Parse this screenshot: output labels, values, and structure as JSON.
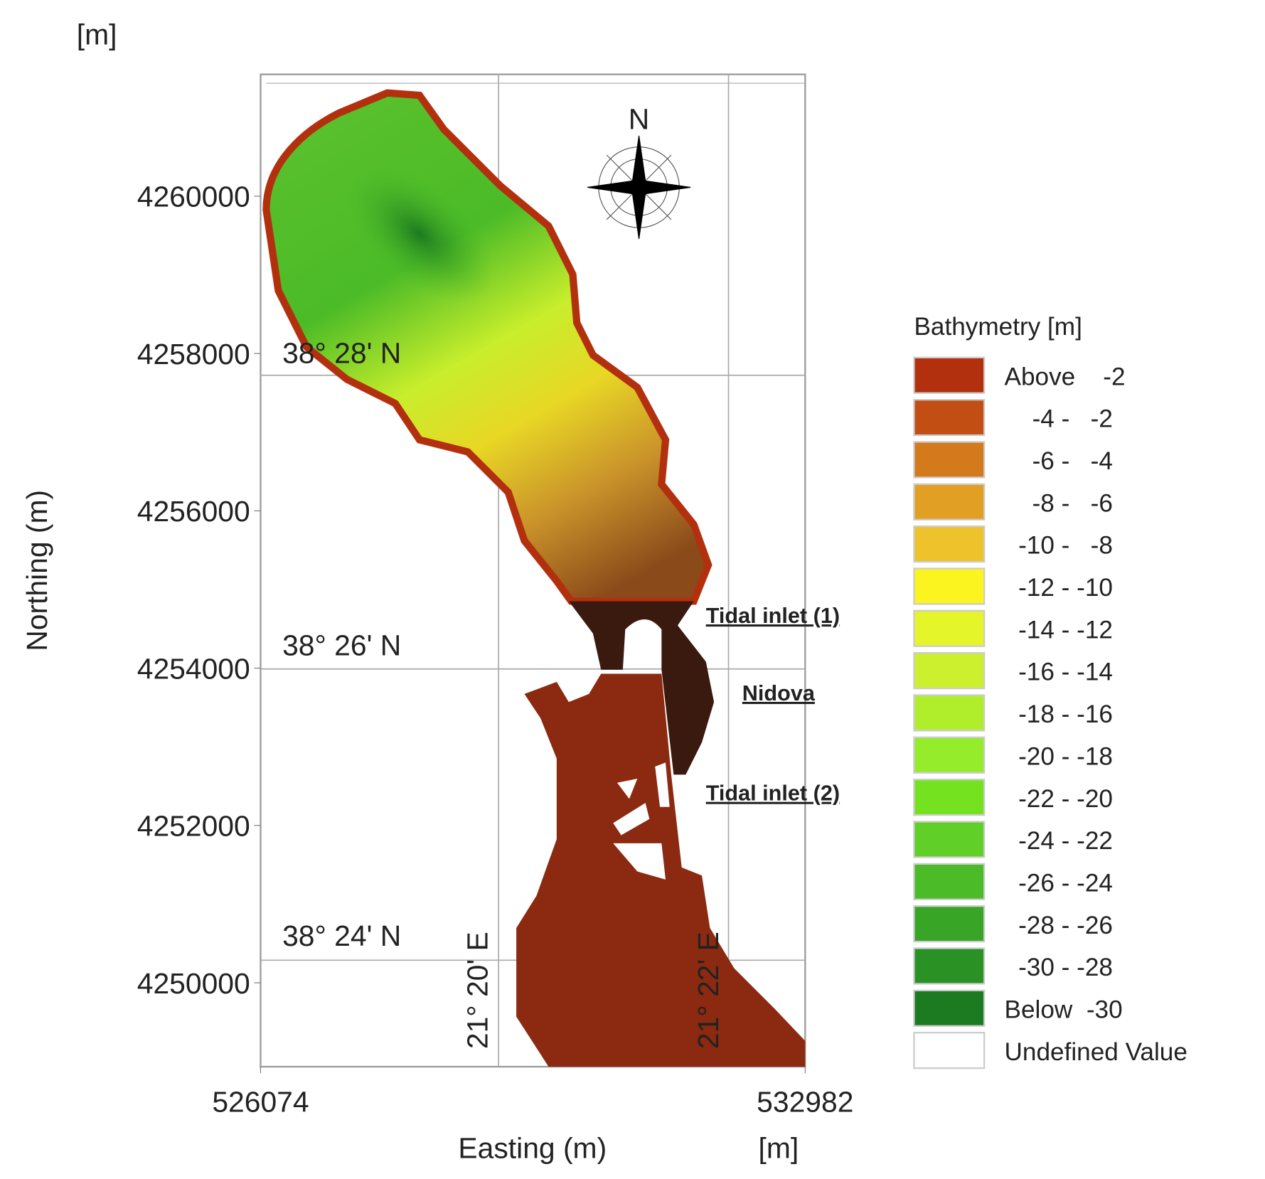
{
  "map": {
    "unit_top": "[m]",
    "unit_bottom": "[m]",
    "y_axis": {
      "label": "Northing (m)",
      "ticks": [
        4260000,
        4258000,
        4256000,
        4254000,
        4252000,
        4250000
      ],
      "lim": [
        4248933,
        4261549
      ]
    },
    "x_axis": {
      "label": "Easting (m)",
      "ticks": [
        526074,
        532982
      ],
      "lim": [
        526074,
        532982
      ]
    },
    "graticule": {
      "latitudes": [
        "38° 28' N",
        "38° 26' N",
        "38° 24' N"
      ],
      "longitudes": [
        "21° 20' E",
        "21° 22' E"
      ]
    },
    "north_arrow": "N",
    "annotations": [
      "Tidal inlet (1)",
      "Nidova",
      "Tidal inlet (2)"
    ],
    "legend": {
      "title": "Bathymetry [m]",
      "items": [
        {
          "label": "Above    -2",
          "color": "#b3300f"
        },
        {
          "label": "    -4 -   -2",
          "color": "#c24e14"
        },
        {
          "label": "    -6 -   -4",
          "color": "#d27a1c"
        },
        {
          "label": "    -8 -   -6",
          "color": "#e1a023"
        },
        {
          "label": "  -10 -   -8",
          "color": "#eec22a"
        },
        {
          "label": "  -12 - -10",
          "color": "#fbf41f"
        },
        {
          "label": "  -14 - -12",
          "color": "#e4f52a"
        },
        {
          "label": "  -16 - -14",
          "color": "#ccf02e"
        },
        {
          "label": "  -18 - -16",
          "color": "#b0ee2c"
        },
        {
          "label": "  -20 - -18",
          "color": "#94ec2a"
        },
        {
          "label": "  -22 - -20",
          "color": "#75e21f"
        },
        {
          "label": "  -24 - -22",
          "color": "#60cf27"
        },
        {
          "label": "  -26 - -24",
          "color": "#4bbb27"
        },
        {
          "label": "  -28 - -26",
          "color": "#38a527"
        },
        {
          "label": "  -30 - -28",
          "color": "#2a9225"
        },
        {
          "label": "Below  -30",
          "color": "#1c7a20"
        },
        {
          "label": "Undefined Value",
          "color": "#ffffff"
        }
      ]
    }
  }
}
